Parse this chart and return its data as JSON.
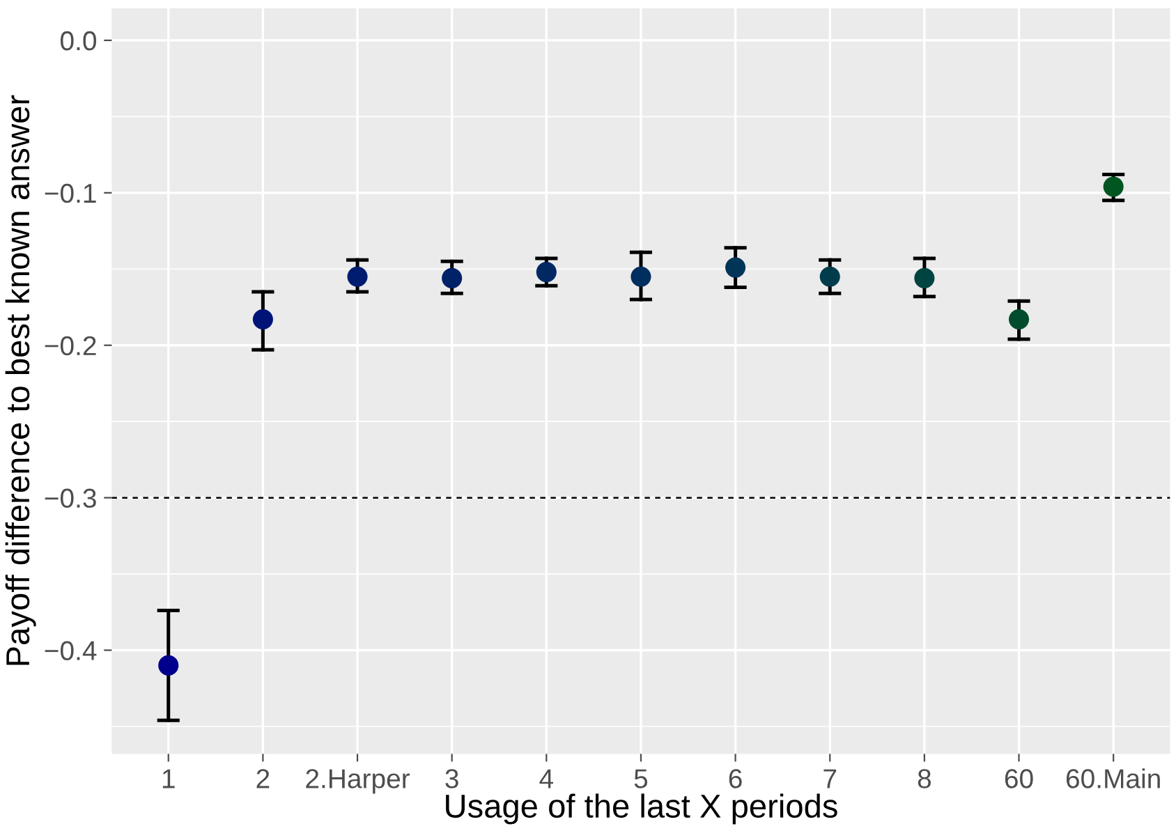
{
  "chart_data": {
    "type": "scatter",
    "xlabel": "Usage of the last X periods",
    "ylabel": "Payoff difference to best known answer",
    "categories": [
      "1",
      "2",
      "2.Harper",
      "3",
      "4",
      "5",
      "6",
      "7",
      "8",
      "60",
      "60.Main"
    ],
    "values": [
      -0.41,
      -0.183,
      -0.155,
      -0.156,
      -0.152,
      -0.155,
      -0.149,
      -0.155,
      -0.156,
      -0.183,
      -0.096
    ],
    "errors": [
      [
        -0.446,
        -0.374
      ],
      [
        -0.203,
        -0.165
      ],
      [
        -0.165,
        -0.144
      ],
      [
        -0.166,
        -0.145
      ],
      [
        -0.161,
        -0.143
      ],
      [
        -0.17,
        -0.139
      ],
      [
        -0.162,
        -0.136
      ],
      [
        -0.166,
        -0.144
      ],
      [
        -0.168,
        -0.143
      ],
      [
        -0.196,
        -0.171
      ],
      [
        -0.105,
        -0.088
      ]
    ],
    "colors": [
      "#00008c",
      "#001478",
      "#001c6e",
      "#002268",
      "#002862",
      "#002e5e",
      "#003558",
      "#003c4c",
      "#004442",
      "#004c2c",
      "#005520"
    ],
    "ylim": [
      -0.468,
      0.021
    ],
    "yticks": [
      {
        "value": 0,
        "label": "0.0"
      },
      {
        "value": -0.1,
        "label": "−0.1"
      },
      {
        "value": -0.2,
        "label": "−0.2"
      },
      {
        "value": -0.3,
        "label": "−0.3"
      },
      {
        "value": -0.4,
        "label": "−0.4"
      }
    ],
    "ref_lines": [
      {
        "axis": "y",
        "value": -0.3,
        "color": "#000000",
        "line_style": "dashed"
      }
    ],
    "grid": true,
    "marker": "circle"
  }
}
